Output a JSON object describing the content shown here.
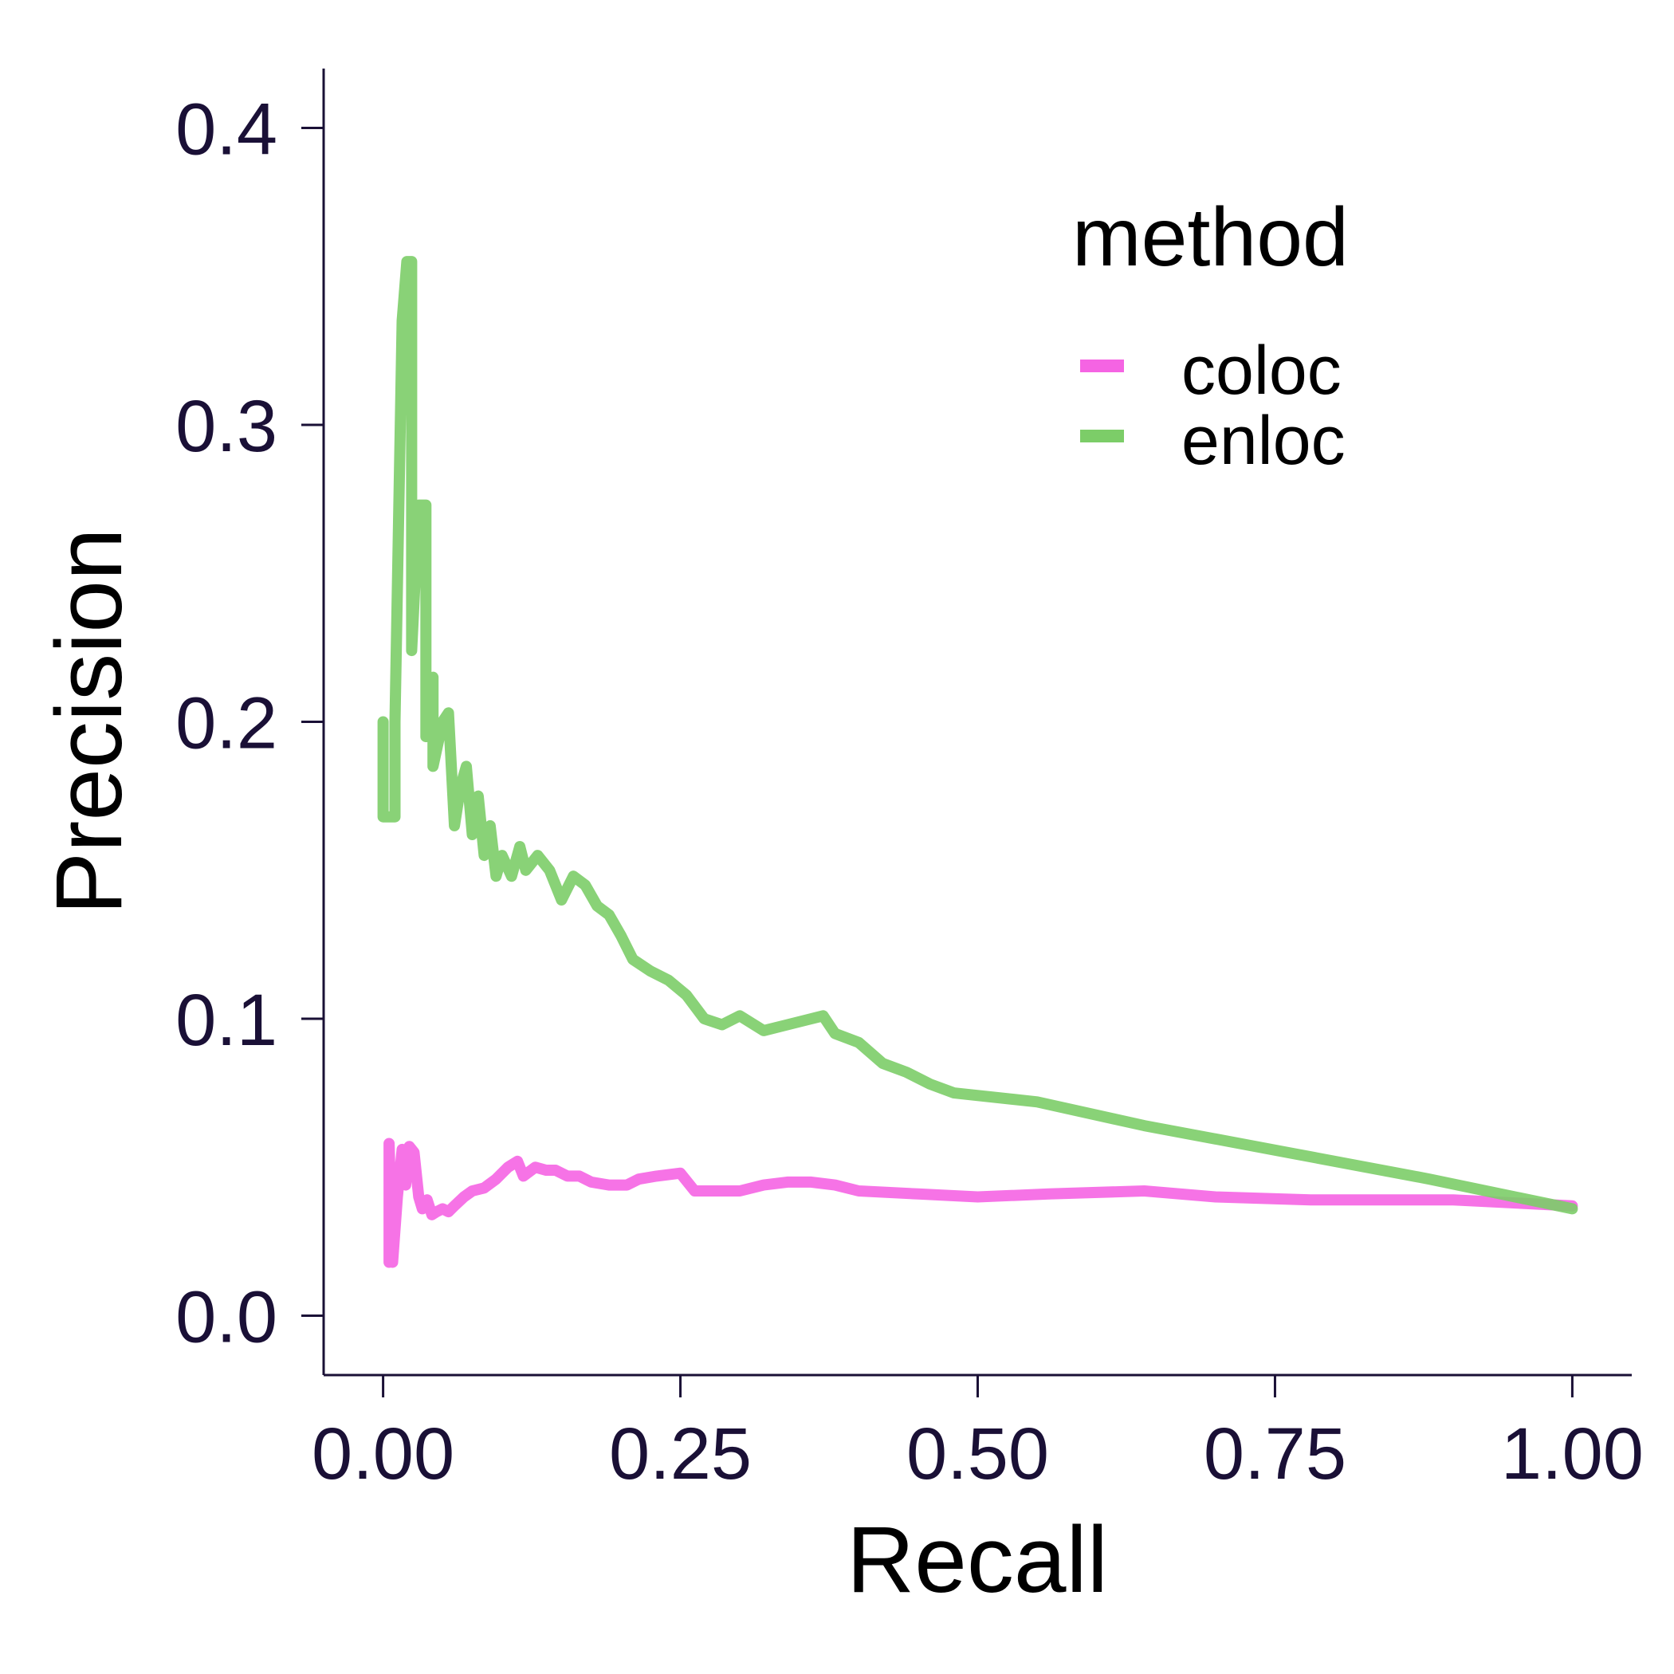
{
  "chart_data": {
    "type": "line",
    "xlabel": "Recall",
    "ylabel": "Precision",
    "xlim": [
      -0.05,
      1.05
    ],
    "ylim": [
      -0.02,
      0.42
    ],
    "x_ticks": [
      "0.00",
      "0.25",
      "0.50",
      "0.75",
      "1.00"
    ],
    "y_ticks": [
      "0.0",
      "0.1",
      "0.2",
      "0.3",
      "0.4"
    ],
    "grid": false,
    "legend": {
      "title": "method",
      "position": "top-right"
    },
    "series": [
      {
        "name": "coloc",
        "color": "#f564e3",
        "points": [
          [
            0.005,
            0.018
          ],
          [
            0.005,
            0.058
          ],
          [
            0.008,
            0.018
          ],
          [
            0.012,
            0.04
          ],
          [
            0.016,
            0.056
          ],
          [
            0.019,
            0.044
          ],
          [
            0.022,
            0.057
          ],
          [
            0.026,
            0.055
          ],
          [
            0.03,
            0.04
          ],
          [
            0.033,
            0.036
          ],
          [
            0.037,
            0.039
          ],
          [
            0.041,
            0.034
          ],
          [
            0.045,
            0.035
          ],
          [
            0.05,
            0.036
          ],
          [
            0.055,
            0.035
          ],
          [
            0.06,
            0.037
          ],
          [
            0.068,
            0.04
          ],
          [
            0.075,
            0.042
          ],
          [
            0.085,
            0.043
          ],
          [
            0.095,
            0.046
          ],
          [
            0.105,
            0.05
          ],
          [
            0.113,
            0.052
          ],
          [
            0.118,
            0.047
          ],
          [
            0.128,
            0.05
          ],
          [
            0.137,
            0.049
          ],
          [
            0.145,
            0.049
          ],
          [
            0.155,
            0.047
          ],
          [
            0.165,
            0.047
          ],
          [
            0.175,
            0.045
          ],
          [
            0.19,
            0.044
          ],
          [
            0.205,
            0.044
          ],
          [
            0.215,
            0.046
          ],
          [
            0.23,
            0.047
          ],
          [
            0.25,
            0.048
          ],
          [
            0.262,
            0.042
          ],
          [
            0.28,
            0.042
          ],
          [
            0.3,
            0.042
          ],
          [
            0.32,
            0.044
          ],
          [
            0.34,
            0.045
          ],
          [
            0.36,
            0.045
          ],
          [
            0.38,
            0.044
          ],
          [
            0.4,
            0.042
          ],
          [
            0.45,
            0.041
          ],
          [
            0.5,
            0.04
          ],
          [
            0.56,
            0.041
          ],
          [
            0.64,
            0.042
          ],
          [
            0.7,
            0.04
          ],
          [
            0.78,
            0.039
          ],
          [
            0.9,
            0.039
          ],
          [
            1.0,
            0.037
          ]
        ]
      },
      {
        "name": "enloc",
        "color": "#7ccd68",
        "points": [
          [
            0.0,
            0.2
          ],
          [
            0.0,
            0.168
          ],
          [
            0.01,
            0.168
          ],
          [
            0.01,
            0.2
          ],
          [
            0.016,
            0.335
          ],
          [
            0.02,
            0.355
          ],
          [
            0.024,
            0.355
          ],
          [
            0.024,
            0.224
          ],
          [
            0.03,
            0.273
          ],
          [
            0.036,
            0.273
          ],
          [
            0.036,
            0.195
          ],
          [
            0.042,
            0.215
          ],
          [
            0.042,
            0.185
          ],
          [
            0.05,
            0.2
          ],
          [
            0.055,
            0.203
          ],
          [
            0.06,
            0.165
          ],
          [
            0.065,
            0.178
          ],
          [
            0.07,
            0.185
          ],
          [
            0.075,
            0.162
          ],
          [
            0.08,
            0.175
          ],
          [
            0.085,
            0.155
          ],
          [
            0.09,
            0.165
          ],
          [
            0.095,
            0.148
          ],
          [
            0.1,
            0.155
          ],
          [
            0.108,
            0.148
          ],
          [
            0.115,
            0.158
          ],
          [
            0.12,
            0.15
          ],
          [
            0.13,
            0.155
          ],
          [
            0.14,
            0.15
          ],
          [
            0.15,
            0.14
          ],
          [
            0.16,
            0.148
          ],
          [
            0.17,
            0.145
          ],
          [
            0.18,
            0.138
          ],
          [
            0.19,
            0.135
          ],
          [
            0.2,
            0.128
          ],
          [
            0.21,
            0.12
          ],
          [
            0.225,
            0.116
          ],
          [
            0.24,
            0.113
          ],
          [
            0.255,
            0.108
          ],
          [
            0.27,
            0.1
          ],
          [
            0.285,
            0.098
          ],
          [
            0.3,
            0.101
          ],
          [
            0.32,
            0.096
          ],
          [
            0.34,
            0.098
          ],
          [
            0.37,
            0.101
          ],
          [
            0.38,
            0.095
          ],
          [
            0.4,
            0.092
          ],
          [
            0.42,
            0.085
          ],
          [
            0.44,
            0.082
          ],
          [
            0.46,
            0.078
          ],
          [
            0.48,
            0.075
          ],
          [
            0.55,
            0.072
          ],
          [
            0.64,
            0.064
          ],
          [
            0.76,
            0.055
          ],
          [
            0.88,
            0.046
          ],
          [
            1.0,
            0.036
          ]
        ]
      }
    ]
  }
}
